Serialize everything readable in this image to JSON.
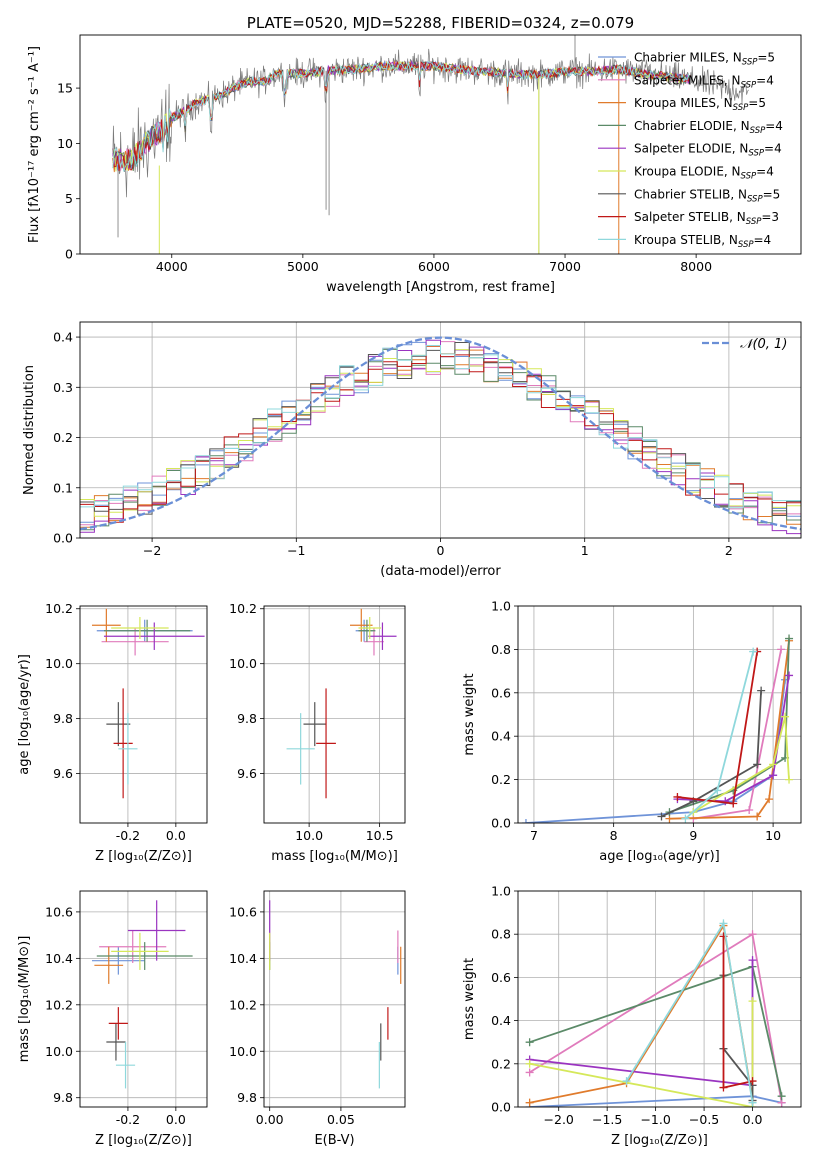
{
  "colors": {
    "Chabrier MILES": "#6f93d8",
    "Salpeter MILES": "#e07bbc",
    "Kroupa MILES": "#e07b2c",
    "Chabrier ELODIE": "#5b8a68",
    "Salpeter ELODIE": "#9a34c0",
    "Kroupa ELODIE": "#d5e85a",
    "Chabrier STELIB": "#555555",
    "Salpeter STELIB": "#c01818",
    "Kroupa STELIB": "#8fd8dc"
  },
  "chart_data": [
    {
      "id": "spectrum",
      "type": "line",
      "title": "PLATE=0520, MJD=52288, FIBERID=0324, z=0.079",
      "xlabel": "wavelength [Angstrom, rest frame]",
      "ylabel": "Flux [fλ10⁻¹⁷ erg cm⁻² s⁻¹ A⁻¹]",
      "xlim": [
        3300,
        8800
      ],
      "ylim": [
        0,
        19.8
      ],
      "xticks": [
        4000,
        5000,
        6000,
        7000,
        8000
      ],
      "yticks": [
        0,
        5,
        10,
        15
      ],
      "legend": [
        "Chabrier MILES, N_SSP=5",
        "Salpeter MILES, N_SSP=4",
        "Kroupa MILES, N_SSP=5",
        "Chabrier ELODIE, N_SSP=4",
        "Salpeter ELODIE, N_SSP=4",
        "Kroupa ELODIE, N_SSP=4",
        "Chabrier STELIB, N_SSP=5",
        "Salpeter STELIB, N_SSP=3",
        "Kroupa STELIB, N_SSP=4"
      ],
      "legend_loc": "right",
      "continuum_model": {
        "x": [
          3550,
          3700,
          3800,
          3900,
          4000,
          4100,
          4200,
          4300,
          4400,
          4500,
          4600,
          4700,
          4800,
          5000,
          5200,
          5400,
          5600,
          5800,
          6000,
          6200,
          6400,
          6600,
          6800,
          7000,
          7200,
          7400,
          7600,
          7800,
          7950
        ],
        "y": [
          8.5,
          8.5,
          10,
          11,
          12.3,
          13,
          13.8,
          14,
          14.5,
          15.2,
          15.6,
          15.6,
          16.3,
          16.3,
          16.6,
          16.7,
          17,
          17,
          17,
          16.7,
          16.5,
          16.3,
          16.2,
          16.5,
          16.5,
          16.7,
          16.3,
          16,
          15.8
        ]
      }
    },
    {
      "id": "residuals",
      "type": "histogram",
      "xlabel": "(data-model)/error",
      "ylabel": "Normed distribution",
      "xlim": [
        -2.5,
        2.5
      ],
      "ylim": [
        0,
        0.43
      ],
      "xticks": [
        -2,
        -1,
        0,
        1,
        2
      ],
      "yticks": [
        0.0,
        0.1,
        0.2,
        0.3,
        0.4
      ],
      "reference_label": "𝒩(0, 1)",
      "reference_color": "#6a8fd6",
      "bin_width": 0.1,
      "legend_loc": "top-right"
    },
    {
      "id": "age_vs_Z",
      "type": "errorbar",
      "xlabel": "Z [log₁₀(Z/Z⊙)]",
      "ylabel": "age  [log₁₀(age/yr)]",
      "xlim": [
        -0.4,
        0.13
      ],
      "ylim": [
        9.42,
        10.21
      ],
      "xticks": [
        -0.2,
        0.0
      ],
      "yticks": [
        9.6,
        9.8,
        10.0,
        10.2
      ],
      "points": [
        {
          "model": "Chabrier MILES",
          "x": -0.13,
          "xerr": 0.2,
          "y": 10.12,
          "yerr": 0.04
        },
        {
          "model": "Salpeter MILES",
          "x": -0.17,
          "xerr": 0.14,
          "y": 10.08,
          "yerr": 0.05
        },
        {
          "model": "Kroupa MILES",
          "x": -0.29,
          "xerr": 0.06,
          "y": 10.14,
          "yerr": 0.06
        },
        {
          "model": "Chabrier ELODIE",
          "x": -0.12,
          "xerr": 0.18,
          "y": 10.12,
          "yerr": 0.04
        },
        {
          "model": "Salpeter ELODIE",
          "x": -0.09,
          "xerr": 0.21,
          "y": 10.1,
          "yerr": 0.05
        },
        {
          "model": "Kroupa ELODIE",
          "x": -0.15,
          "xerr": 0.12,
          "y": 10.13,
          "yerr": 0.04
        },
        {
          "model": "Chabrier STELIB",
          "x": -0.24,
          "xerr": 0.05,
          "y": 9.78,
          "yerr": 0.08
        },
        {
          "model": "Salpeter STELIB",
          "x": -0.22,
          "xerr": 0.04,
          "y": 9.71,
          "yerr": 0.2
        },
        {
          "model": "Kroupa STELIB",
          "x": -0.2,
          "xerr": 0.04,
          "y": 9.69,
          "yerr": 0.13
        }
      ]
    },
    {
      "id": "age_vs_mass",
      "type": "errorbar",
      "xlabel": "mass [log₁₀(M/M⊙)]",
      "ylabel": "",
      "xlim": [
        9.68,
        10.68
      ],
      "ylim": [
        9.42,
        10.21
      ],
      "xticks": [
        10.0,
        10.5
      ],
      "yticks": [
        9.6,
        9.8,
        10.0,
        10.2
      ],
      "points": [
        {
          "model": "Chabrier MILES",
          "x": 10.39,
          "xerr": 0.06,
          "y": 10.12,
          "yerr": 0.04
        },
        {
          "model": "Salpeter MILES",
          "x": 10.46,
          "xerr": 0.07,
          "y": 10.08,
          "yerr": 0.05
        },
        {
          "model": "Kroupa MILES",
          "x": 10.37,
          "xerr": 0.08,
          "y": 10.14,
          "yerr": 0.06
        },
        {
          "model": "Chabrier ELODIE",
          "x": 10.41,
          "xerr": 0.06,
          "y": 10.12,
          "yerr": 0.04
        },
        {
          "model": "Salpeter ELODIE",
          "x": 10.52,
          "xerr": 0.1,
          "y": 10.1,
          "yerr": 0.05
        },
        {
          "model": "Kroupa ELODIE",
          "x": 10.43,
          "xerr": 0.08,
          "y": 10.13,
          "yerr": 0.04
        },
        {
          "model": "Chabrier STELIB",
          "x": 10.04,
          "xerr": 0.08,
          "y": 9.78,
          "yerr": 0.08
        },
        {
          "model": "Salpeter STELIB",
          "x": 10.12,
          "xerr": 0.07,
          "y": 9.71,
          "yerr": 0.2
        },
        {
          "model": "Kroupa STELIB",
          "x": 9.94,
          "xerr": 0.1,
          "y": 9.69,
          "yerr": 0.13
        }
      ]
    },
    {
      "id": "weight_vs_age",
      "type": "line",
      "xlabel": "age  [log₁₀(age/yr)]",
      "ylabel": "mass weight",
      "xlim": [
        6.8,
        10.35
      ],
      "ylim": [
        0,
        1.0
      ],
      "xticks": [
        7,
        8,
        9,
        10
      ],
      "yticks": [
        0.0,
        0.2,
        0.4,
        0.6,
        0.8,
        1.0
      ],
      "series": [
        {
          "model": "Chabrier MILES",
          "x": [
            6.9,
            9.0,
            9.5,
            10.0,
            10.15
          ],
          "y": [
            0.0,
            0.05,
            0.1,
            0.22,
            0.66
          ]
        },
        {
          "model": "Salpeter MILES",
          "x": [
            9.0,
            9.7,
            10.1
          ],
          "y": [
            0.02,
            0.06,
            0.8
          ]
        },
        {
          "model": "Kroupa MILES",
          "x": [
            8.7,
            9.8,
            9.95,
            10.2
          ],
          "y": [
            0.02,
            0.03,
            0.11,
            0.84
          ]
        },
        {
          "model": "Chabrier ELODIE",
          "x": [
            8.7,
            9.5,
            10.15,
            10.2
          ],
          "y": [
            0.05,
            0.15,
            0.3,
            0.85
          ]
        },
        {
          "model": "Salpeter ELODIE",
          "x": [
            8.8,
            9.4,
            10.0,
            10.2
          ],
          "y": [
            0.11,
            0.1,
            0.22,
            0.68
          ]
        },
        {
          "model": "Kroupa ELODIE",
          "x": [
            9.0,
            10.0,
            10.15,
            10.2
          ],
          "y": [
            0.05,
            0.27,
            0.49,
            0.2
          ]
        },
        {
          "model": "Chabrier STELIB",
          "x": [
            8.6,
            9.0,
            9.8,
            9.85
          ],
          "y": [
            0.03,
            0.1,
            0.27,
            0.61
          ]
        },
        {
          "model": "Salpeter STELIB",
          "x": [
            8.8,
            9.5,
            9.8
          ],
          "y": [
            0.12,
            0.09,
            0.79
          ]
        },
        {
          "model": "Kroupa STELIB",
          "x": [
            8.9,
            9.3,
            9.75
          ],
          "y": [
            0.02,
            0.15,
            0.79
          ]
        }
      ]
    },
    {
      "id": "mass_vs_Z",
      "type": "errorbar",
      "xlabel": "Z [log₁₀(Z/Z⊙)]",
      "ylabel": "mass [log₁₀(M/M⊙)]",
      "xlim": [
        -0.4,
        0.13
      ],
      "ylim": [
        9.76,
        10.69
      ],
      "xticks": [
        -0.2,
        0.0
      ],
      "yticks": [
        9.8,
        10.0,
        10.2,
        10.4,
        10.6
      ],
      "points": [
        {
          "model": "Chabrier MILES",
          "x": -0.24,
          "xerr": 0.11,
          "y": 10.39,
          "yerr": 0.06
        },
        {
          "model": "Salpeter MILES",
          "x": -0.18,
          "xerr": 0.14,
          "y": 10.45,
          "yerr": 0.07
        },
        {
          "model": "Kroupa MILES",
          "x": -0.28,
          "xerr": 0.06,
          "y": 10.37,
          "yerr": 0.08
        },
        {
          "model": "Chabrier ELODIE",
          "x": -0.13,
          "xerr": 0.2,
          "y": 10.41,
          "yerr": 0.06
        },
        {
          "model": "Salpeter ELODIE",
          "x": -0.08,
          "xerr": 0.12,
          "y": 10.52,
          "yerr": 0.13
        },
        {
          "model": "Kroupa ELODIE",
          "x": -0.15,
          "xerr": 0.12,
          "y": 10.43,
          "yerr": 0.08
        },
        {
          "model": "Chabrier STELIB",
          "x": -0.25,
          "xerr": 0.04,
          "y": 10.04,
          "yerr": 0.08
        },
        {
          "model": "Salpeter STELIB",
          "x": -0.24,
          "xerr": 0.04,
          "y": 10.12,
          "yerr": 0.07
        },
        {
          "model": "Kroupa STELIB",
          "x": -0.21,
          "xerr": 0.04,
          "y": 9.94,
          "yerr": 0.1
        }
      ]
    },
    {
      "id": "mass_vs_EBV",
      "type": "errorbar",
      "xlabel": "E(B-V)",
      "ylabel": "",
      "xlim": [
        -0.004,
        0.095
      ],
      "ylim": [
        9.76,
        10.69
      ],
      "xticks": [
        0.0,
        0.05
      ],
      "xticklabels": [
        "0.00",
        "0.05"
      ],
      "yticks": [
        9.8,
        10.0,
        10.2,
        10.4,
        10.6
      ],
      "points": [
        {
          "model": "Chabrier MILES",
          "x": 0.09,
          "xerr": 0,
          "y": 10.39,
          "yerr": 0.06
        },
        {
          "model": "Salpeter MILES",
          "x": 0.09,
          "xerr": 0,
          "y": 10.45,
          "yerr": 0.07
        },
        {
          "model": "Kroupa MILES",
          "x": 0.092,
          "xerr": 0,
          "y": 10.37,
          "yerr": 0.08
        },
        {
          "model": "Chabrier ELODIE",
          "x": 0.0,
          "xerr": 0,
          "y": 10.41,
          "yerr": 0.06
        },
        {
          "model": "Salpeter ELODIE",
          "x": 0.0,
          "xerr": 0,
          "y": 10.52,
          "yerr": 0.13
        },
        {
          "model": "Kroupa ELODIE",
          "x": 0.0,
          "xerr": 0,
          "y": 10.43,
          "yerr": 0.08
        },
        {
          "model": "Chabrier STELIB",
          "x": 0.078,
          "xerr": 0,
          "y": 10.04,
          "yerr": 0.08
        },
        {
          "model": "Salpeter STELIB",
          "x": 0.083,
          "xerr": 0,
          "y": 10.12,
          "yerr": 0.07
        },
        {
          "model": "Kroupa STELIB",
          "x": 0.077,
          "xerr": 0,
          "y": 9.94,
          "yerr": 0.1
        }
      ]
    },
    {
      "id": "weight_vs_Z",
      "type": "line",
      "xlabel": "Z [log₁₀(Z/Z⊙)]",
      "ylabel": "mass weight",
      "xlim": [
        -2.42,
        0.5
      ],
      "ylim": [
        0,
        1.0
      ],
      "xticks": [
        -2.0,
        -1.5,
        -1.0,
        -0.5,
        0.0
      ],
      "yticks": [
        0.0,
        0.2,
        0.4,
        0.6,
        0.8,
        1.0
      ],
      "series": [
        {
          "model": "Chabrier MILES",
          "x": [
            -2.3,
            0.0,
            0.3
          ],
          "y": [
            0.0,
            0.05,
            0.02
          ]
        },
        {
          "model": "Salpeter MILES",
          "x": [
            -2.3,
            0.0,
            0.3
          ],
          "y": [
            0.16,
            0.8,
            0.02
          ]
        },
        {
          "model": "Kroupa MILES",
          "x": [
            -2.3,
            -1.3,
            -0.3,
            0.0
          ],
          "y": [
            0.02,
            0.11,
            0.84,
            0.03
          ]
        },
        {
          "model": "Chabrier ELODIE",
          "x": [
            -2.3,
            0.0,
            0.3
          ],
          "y": [
            0.3,
            0.65,
            0.05
          ]
        },
        {
          "model": "Salpeter ELODIE",
          "x": [
            -2.3,
            0.0,
            0.0
          ],
          "y": [
            0.22,
            0.1,
            0.68
          ]
        },
        {
          "model": "Kroupa ELODIE",
          "x": [
            -2.3,
            0.0,
            0.0
          ],
          "y": [
            0.2,
            0.0,
            0.49
          ]
        },
        {
          "model": "Chabrier STELIB",
          "x": [
            -0.3,
            -0.3,
            0.0,
            0.0
          ],
          "y": [
            0.61,
            0.27,
            0.1,
            0.03
          ]
        },
        {
          "model": "Salpeter STELIB",
          "x": [
            -0.3,
            -0.3,
            0.0
          ],
          "y": [
            0.79,
            0.09,
            0.12
          ]
        },
        {
          "model": "Kroupa STELIB",
          "x": [
            -1.3,
            -0.3,
            0.0
          ],
          "y": [
            0.12,
            0.85,
            0.02
          ]
        }
      ]
    }
  ]
}
